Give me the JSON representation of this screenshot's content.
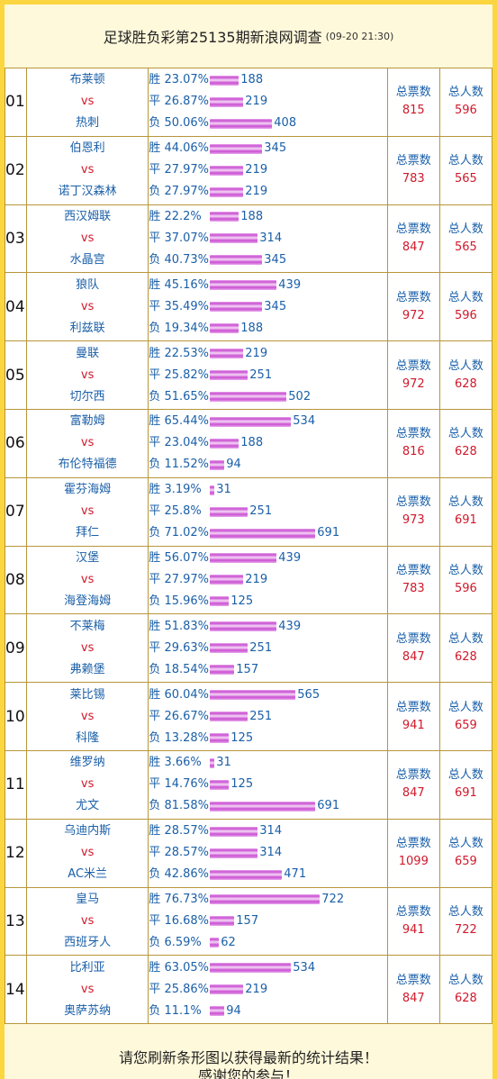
{
  "header": {
    "title": "足球胜负彩第25135期新浪网调查",
    "timestamp": "(09-20 21:30)"
  },
  "labels": {
    "win": "胜",
    "draw": "平",
    "lose": "负",
    "vs": "vs",
    "total_votes": "总票数",
    "total_people": "总人数"
  },
  "colors": {
    "accent_blue": "#1a5fa8",
    "accent_red": "#d0192b",
    "bar_purple": "#c94fd2",
    "frame_gold": "#fcd640"
  },
  "matches": [
    {
      "no": "01",
      "home": "布莱顿",
      "away": "热刺",
      "win_pct": "23.07%",
      "win": 188,
      "draw_pct": "26.87%",
      "draw": 219,
      "lose_pct": "50.06%",
      "lose": 408,
      "total_votes": "815",
      "total_people": "596"
    },
    {
      "no": "02",
      "home": "伯恩利",
      "away": "诺丁汉森林",
      "win_pct": "44.06%",
      "win": 345,
      "draw_pct": "27.97%",
      "draw": 219,
      "lose_pct": "27.97%",
      "lose": 219,
      "total_votes": "783",
      "total_people": "565"
    },
    {
      "no": "03",
      "home": "西汉姆联",
      "away": "水晶宫",
      "win_pct": "22.2%",
      "win": 188,
      "draw_pct": "37.07%",
      "draw": 314,
      "lose_pct": "40.73%",
      "lose": 345,
      "total_votes": "847",
      "total_people": "565"
    },
    {
      "no": "04",
      "home": "狼队",
      "away": "利兹联",
      "win_pct": "45.16%",
      "win": 439,
      "draw_pct": "35.49%",
      "draw": 345,
      "lose_pct": "19.34%",
      "lose": 188,
      "total_votes": "972",
      "total_people": "596"
    },
    {
      "no": "05",
      "home": "曼联",
      "away": "切尔西",
      "win_pct": "22.53%",
      "win": 219,
      "draw_pct": "25.82%",
      "draw": 251,
      "lose_pct": "51.65%",
      "lose": 502,
      "total_votes": "972",
      "total_people": "628"
    },
    {
      "no": "06",
      "home": "富勒姆",
      "away": "布伦特福德",
      "win_pct": "65.44%",
      "win": 534,
      "draw_pct": "23.04%",
      "draw": 188,
      "lose_pct": "11.52%",
      "lose": 94,
      "total_votes": "816",
      "total_people": "628"
    },
    {
      "no": "07",
      "home": "霍芬海姆",
      "away": "拜仁",
      "win_pct": "3.19%",
      "win": 31,
      "draw_pct": "25.8%",
      "draw": 251,
      "lose_pct": "71.02%",
      "lose": 691,
      "total_votes": "973",
      "total_people": "691"
    },
    {
      "no": "08",
      "home": "汉堡",
      "away": "海登海姆",
      "win_pct": "56.07%",
      "win": 439,
      "draw_pct": "27.97%",
      "draw": 219,
      "lose_pct": "15.96%",
      "lose": 125,
      "total_votes": "783",
      "total_people": "596"
    },
    {
      "no": "09",
      "home": "不莱梅",
      "away": "弗赖堡",
      "win_pct": "51.83%",
      "win": 439,
      "draw_pct": "29.63%",
      "draw": 251,
      "lose_pct": "18.54%",
      "lose": 157,
      "total_votes": "847",
      "total_people": "628"
    },
    {
      "no": "10",
      "home": "莱比锡",
      "away": "科隆",
      "win_pct": "60.04%",
      "win": 565,
      "draw_pct": "26.67%",
      "draw": 251,
      "lose_pct": "13.28%",
      "lose": 125,
      "total_votes": "941",
      "total_people": "659"
    },
    {
      "no": "11",
      "home": "维罗纳",
      "away": "尤文",
      "win_pct": "3.66%",
      "win": 31,
      "draw_pct": "14.76%",
      "draw": 125,
      "lose_pct": "81.58%",
      "lose": 691,
      "total_votes": "847",
      "total_people": "691"
    },
    {
      "no": "12",
      "home": "乌迪内斯",
      "away": "AC米兰",
      "win_pct": "28.57%",
      "win": 314,
      "draw_pct": "28.57%",
      "draw": 314,
      "lose_pct": "42.86%",
      "lose": 471,
      "total_votes": "1099",
      "total_people": "659"
    },
    {
      "no": "13",
      "home": "皇马",
      "away": "西班牙人",
      "win_pct": "76.73%",
      "win": 722,
      "draw_pct": "16.68%",
      "draw": 157,
      "lose_pct": "6.59%",
      "lose": 62,
      "total_votes": "941",
      "total_people": "722"
    },
    {
      "no": "14",
      "home": "比利亚",
      "away": "奥萨苏纳",
      "win_pct": "63.05%",
      "win": 534,
      "draw_pct": "25.86%",
      "draw": 219,
      "lose_pct": "11.1%",
      "lose": 94,
      "total_votes": "847",
      "total_people": "628"
    }
  ],
  "footer": {
    "line1": "请您刷新条形图以获得最新的统计结果！",
    "line2": "感谢您的参与！"
  }
}
